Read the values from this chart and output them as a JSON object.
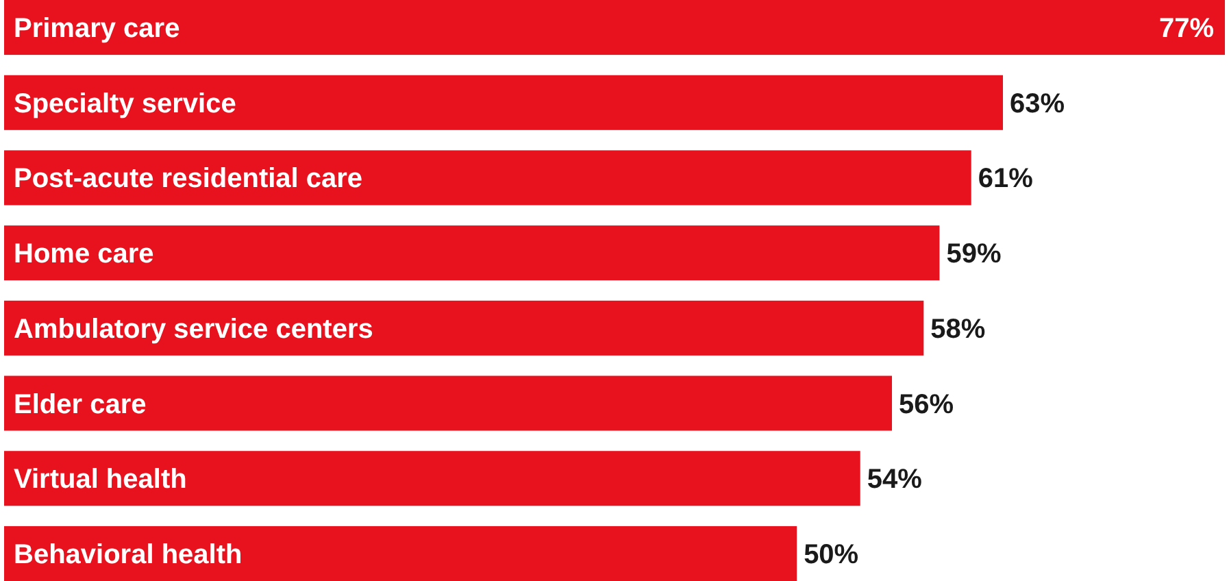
{
  "chart_data": {
    "type": "bar",
    "orientation": "horizontal",
    "categories": [
      "Primary care",
      "Specialty service",
      "Post-acute residential care",
      "Home care",
      "Ambulatory service centers",
      "Elder care",
      "Virtual health",
      "Behavioral health"
    ],
    "values": [
      77,
      63,
      61,
      59,
      58,
      56,
      54,
      50
    ],
    "value_labels": [
      "77%",
      "63%",
      "61%",
      "59%",
      "58%",
      "56%",
      "54%",
      "50%"
    ],
    "color": "#e8121e"
  }
}
